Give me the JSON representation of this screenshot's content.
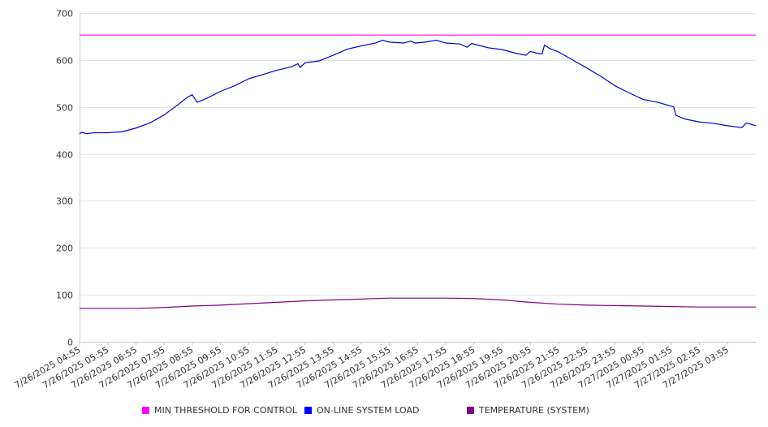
{
  "chart_data": {
    "type": "line",
    "title": "",
    "xlabel": "",
    "ylabel": "",
    "ylim": [
      0,
      700
    ],
    "yticks": [
      0,
      100,
      200,
      300,
      400,
      500,
      600,
      700
    ],
    "xtick_labels": [
      "7/26/2025 04:55",
      "7/26/2025 05:55",
      "7/26/2025 06:55",
      "7/26/2025 07:55",
      "7/26/2025 08:55",
      "7/26/2025 09:55",
      "7/26/2025 10:55",
      "7/26/2025 11:55",
      "7/26/2025 12:55",
      "7/26/2025 13:55",
      "7/26/2025 14:55",
      "7/26/2025 15:55",
      "7/26/2025 16:55",
      "7/26/2025 17:55",
      "7/26/2025 18:55",
      "7/26/2025 19:55",
      "7/26/2025 20:55",
      "7/26/2025 21:55",
      "7/26/2025 22:55",
      "7/26/2025 23:55",
      "7/27/2025 00:55",
      "7/27/2025 01:55",
      "7/27/2025 02:55",
      "7/27/2025 03:55"
    ],
    "x_range": [
      "7/26/2025 04:55",
      "7/27/2025 04:55"
    ],
    "grid": true,
    "legend_position": "bottom",
    "series": [
      {
        "name": "MIN THRESHOLD FOR CONTROL",
        "color": "#ff00ff",
        "points": [
          [
            "7/26/2025 04:55",
            653
          ],
          [
            "7/27/2025 04:55",
            653
          ]
        ]
      },
      {
        "name": "ON-LINE SYSTEM LOAD",
        "color": "#0000cc",
        "points": [
          [
            "7/26/2025 04:55",
            443
          ],
          [
            "7/26/2025 05:00",
            446
          ],
          [
            "7/26/2025 05:10",
            443
          ],
          [
            "7/26/2025 05:25",
            445
          ],
          [
            "7/26/2025 05:55",
            445
          ],
          [
            "7/26/2025 06:25",
            447
          ],
          [
            "7/26/2025 06:55",
            455
          ],
          [
            "7/26/2025 07:25",
            466
          ],
          [
            "7/26/2025 07:55",
            483
          ],
          [
            "7/26/2025 08:25",
            505
          ],
          [
            "7/26/2025 08:45",
            521
          ],
          [
            "7/26/2025 08:55",
            526
          ],
          [
            "7/26/2025 09:05",
            510
          ],
          [
            "7/26/2025 09:25",
            518
          ],
          [
            "7/26/2025 09:55",
            533
          ],
          [
            "7/26/2025 10:25",
            545
          ],
          [
            "7/26/2025 10:55",
            560
          ],
          [
            "7/26/2025 11:25",
            569
          ],
          [
            "7/26/2025 11:55",
            578
          ],
          [
            "7/26/2025 12:25",
            585
          ],
          [
            "7/26/2025 12:40",
            592
          ],
          [
            "7/26/2025 12:45",
            584
          ],
          [
            "7/26/2025 12:55",
            594
          ],
          [
            "7/26/2025 13:25",
            598
          ],
          [
            "7/26/2025 13:55",
            610
          ],
          [
            "7/26/2025 14:25",
            623
          ],
          [
            "7/26/2025 14:55",
            630
          ],
          [
            "7/26/2025 15:25",
            636
          ],
          [
            "7/26/2025 15:40",
            642
          ],
          [
            "7/26/2025 15:55",
            638
          ],
          [
            "7/26/2025 16:25",
            636
          ],
          [
            "7/26/2025 16:40",
            640
          ],
          [
            "7/26/2025 16:50",
            636
          ],
          [
            "7/26/2025 17:10",
            638
          ],
          [
            "7/26/2025 17:35",
            642
          ],
          [
            "7/26/2025 17:55",
            636
          ],
          [
            "7/26/2025 18:25",
            634
          ],
          [
            "7/26/2025 18:40",
            627
          ],
          [
            "7/26/2025 18:50",
            635
          ],
          [
            "7/26/2025 19:25",
            626
          ],
          [
            "7/26/2025 19:55",
            622
          ],
          [
            "7/26/2025 20:25",
            614
          ],
          [
            "7/26/2025 20:45",
            610
          ],
          [
            "7/26/2025 20:55",
            618
          ],
          [
            "7/26/2025 21:10",
            614
          ],
          [
            "7/26/2025 21:20",
            613
          ],
          [
            "7/26/2025 21:25",
            632
          ],
          [
            "7/26/2025 21:35",
            625
          ],
          [
            "7/26/2025 21:55",
            617
          ],
          [
            "7/26/2025 22:25",
            600
          ],
          [
            "7/26/2025 22:55",
            583
          ],
          [
            "7/26/2025 23:25",
            565
          ],
          [
            "7/26/2025 23:55",
            545
          ],
          [
            "7/27/2025 00:25",
            530
          ],
          [
            "7/27/2025 00:55",
            516
          ],
          [
            "7/27/2025 01:25",
            510
          ],
          [
            "7/27/2025 01:50",
            503
          ],
          [
            "7/27/2025 02:00",
            500
          ],
          [
            "7/27/2025 02:05",
            482
          ],
          [
            "7/27/2025 02:25",
            474
          ],
          [
            "7/27/2025 02:55",
            468
          ],
          [
            "7/27/2025 03:25",
            465
          ],
          [
            "7/27/2025 03:55",
            460
          ],
          [
            "7/27/2025 04:25",
            456
          ],
          [
            "7/27/2025 04:35",
            466
          ],
          [
            "7/27/2025 04:45",
            463
          ],
          [
            "7/27/2025 04:55",
            460
          ]
        ]
      },
      {
        "name": "TEMPERATURE (SYSTEM)",
        "color": "#800080",
        "points": [
          [
            "7/26/2025 04:55",
            71
          ],
          [
            "7/26/2025 06:55",
            71
          ],
          [
            "7/26/2025 07:55",
            73
          ],
          [
            "7/26/2025 08:55",
            76
          ],
          [
            "7/26/2025 09:55",
            78
          ],
          [
            "7/26/2025 10:55",
            81
          ],
          [
            "7/26/2025 11:55",
            84
          ],
          [
            "7/26/2025 12:55",
            87
          ],
          [
            "7/26/2025 13:55",
            89
          ],
          [
            "7/26/2025 14:55",
            91
          ],
          [
            "7/26/2025 15:55",
            93
          ],
          [
            "7/26/2025 16:55",
            93
          ],
          [
            "7/26/2025 17:55",
            93
          ],
          [
            "7/26/2025 18:55",
            92
          ],
          [
            "7/26/2025 19:55",
            89
          ],
          [
            "7/26/2025 20:55",
            84
          ],
          [
            "7/26/2025 21:55",
            80
          ],
          [
            "7/26/2025 22:55",
            78
          ],
          [
            "7/26/2025 23:55",
            77
          ],
          [
            "7/27/2025 00:55",
            76
          ],
          [
            "7/27/2025 01:55",
            75
          ],
          [
            "7/27/2025 02:55",
            74
          ],
          [
            "7/27/2025 03:55",
            74
          ],
          [
            "7/27/2025 04:55",
            74
          ]
        ]
      }
    ]
  },
  "legend": {
    "items": [
      {
        "label": "MIN THRESHOLD FOR CONTROL",
        "color": "#ff00ff"
      },
      {
        "label": "ON-LINE SYSTEM LOAD",
        "color": "#0000ff"
      },
      {
        "label": "TEMPERATURE (SYSTEM)",
        "color": "#800080"
      }
    ]
  }
}
